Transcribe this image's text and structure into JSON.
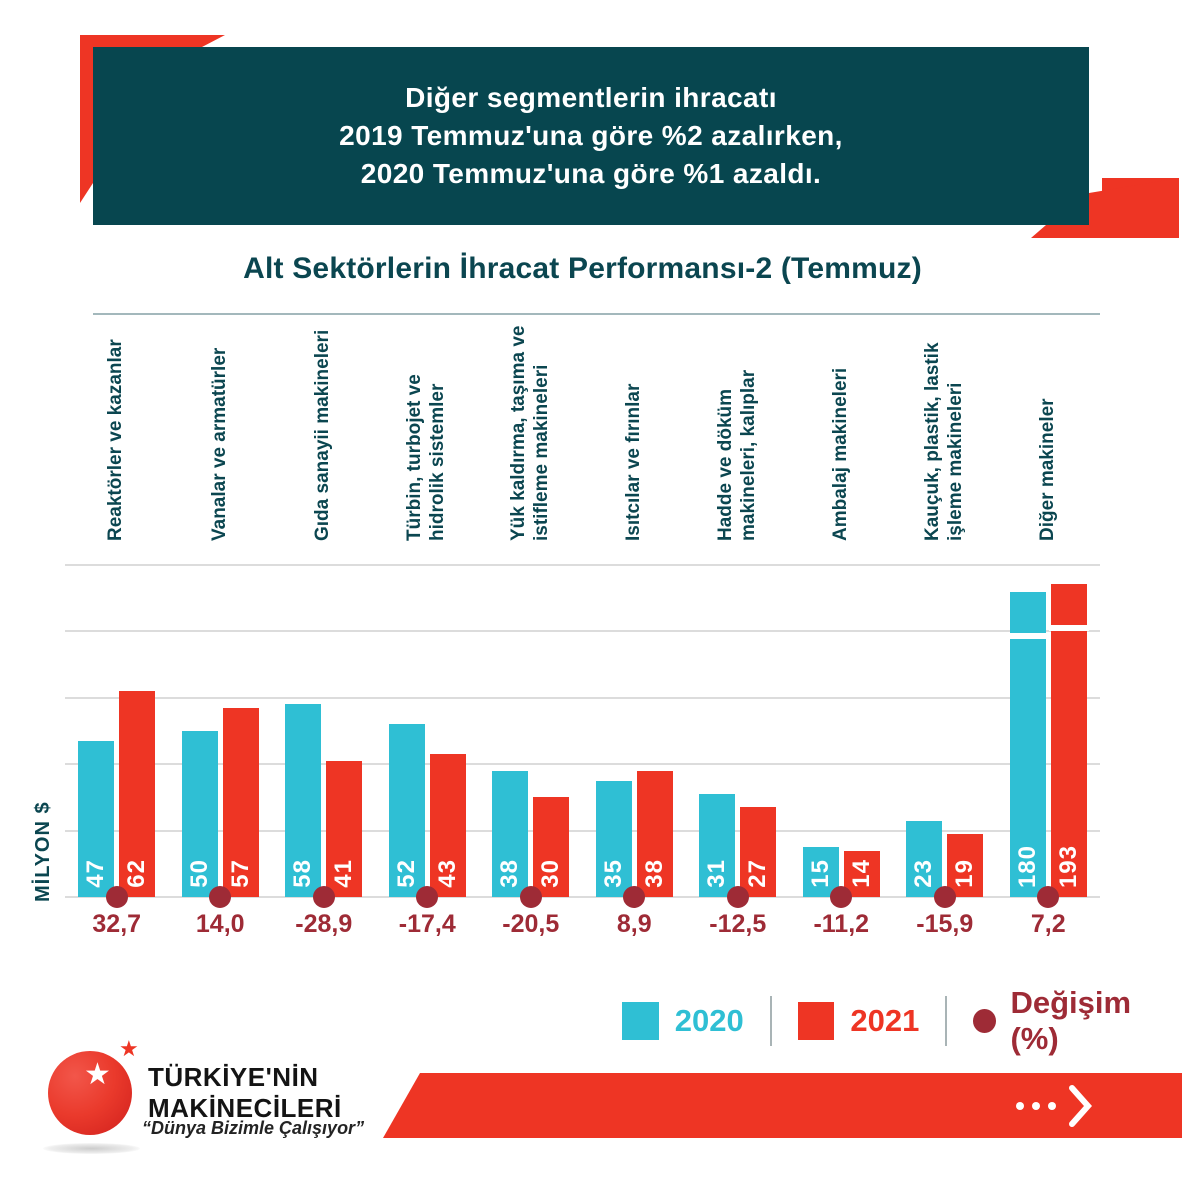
{
  "header": {
    "lines": [
      "Diğer segmentlerin ihracatı",
      "2019 Temmuz'una göre %2 azalırken,",
      "2020 Temmuz'una göre %1 azaldı."
    ]
  },
  "footer": {
    "brand_line1": "TÜRKİYE'NİN",
    "brand_line2": "MAKİNECİLERİ",
    "slogan": "“Dünya Bizimle Çalışıyor”"
  },
  "colors": {
    "teal": "#07464f",
    "teal_text": "#0b4650",
    "cyan": "#2fbfd4",
    "red": "#ee3524",
    "dark_red": "#9e2b36",
    "gridline": "#dcdcdc"
  },
  "chart_data": {
    "type": "bar",
    "title": "Alt Sektörlerin İhracat Performansı-2 (Temmuz)",
    "unit_label": "MİLYON $",
    "categories": [
      "Reaktörler ve kazanlar",
      "Vanalar  ve armatürler",
      "Gıda sanayii makineleri",
      "Türbin, turbojet ve\nhidrolik sistemler",
      "Yük kaldırma, taşıma ve\nistifleme makineleri",
      "Isıtcılar ve fırınlar",
      "Hadde ve döküm\nmakineleri, kalıplar",
      "Ambalaj makineleri",
      "Kauçuk, plastik, lastik\nişleme makineleri",
      "Diğer makineler"
    ],
    "series": [
      {
        "name": "2020",
        "color": "#2fbfd4",
        "values": [
          47,
          50,
          58,
          52,
          38,
          35,
          31,
          15,
          23,
          180
        ]
      },
      {
        "name": "2021",
        "color": "#ee3524",
        "values": [
          62,
          57,
          41,
          43,
          30,
          38,
          27,
          14,
          19,
          193
        ]
      }
    ],
    "change_pct_label": "Değişim (%)",
    "change_pct": [
      "32,7",
      "14,0",
      "-28,9",
      "-17,4",
      "-20,5",
      "8,9",
      "-12,5",
      "-11,2",
      "-15,9",
      "7,2"
    ],
    "ylim": [
      0,
      100
    ],
    "grid_step": 20,
    "grid": true,
    "legend_position": "bottom-right",
    "axis_break_note": "last group (180 / 193) exceeds the 0–100 scale and is drawn clipped with a white break"
  }
}
